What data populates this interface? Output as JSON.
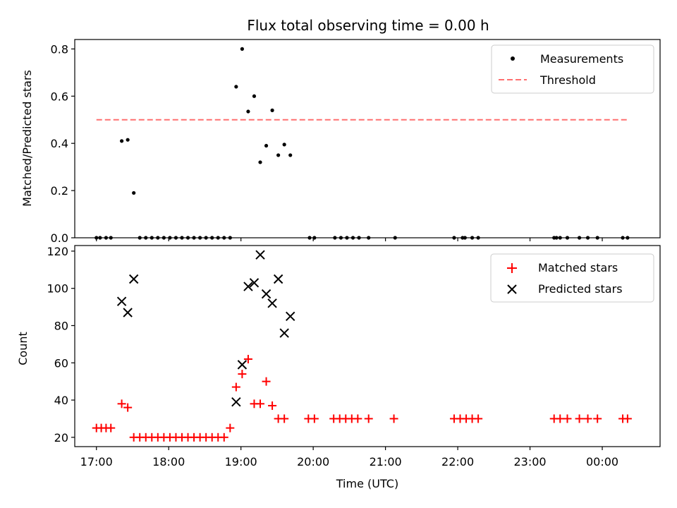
{
  "chart_data": [
    {
      "type": "scatter",
      "title": "Flux total observing time = 0.00 h",
      "ylabel": "Matched/Predicted stars",
      "xlim": [
        "16:42",
        "00:48"
      ],
      "ylim": [
        0,
        0.84
      ],
      "yticks": [
        "0.0",
        "0.2",
        "0.4",
        "0.6",
        "0.8"
      ],
      "legend_position": "top-right",
      "series": [
        {
          "name": "Measurements",
          "color": "#000000",
          "marker": "dot",
          "points": [
            {
              "x": "17:00",
              "y": 0.0
            },
            {
              "x": "17:03",
              "y": 0.0
            },
            {
              "x": "17:08",
              "y": 0.0
            },
            {
              "x": "17:12",
              "y": 0.0
            },
            {
              "x": "17:21",
              "y": 0.41
            },
            {
              "x": "17:26",
              "y": 0.415
            },
            {
              "x": "17:31",
              "y": 0.19
            },
            {
              "x": "17:36",
              "y": 0.0
            },
            {
              "x": "17:41",
              "y": 0.0
            },
            {
              "x": "17:46",
              "y": 0.0
            },
            {
              "x": "17:51",
              "y": 0.0
            },
            {
              "x": "17:56",
              "y": 0.0
            },
            {
              "x": "18:01",
              "y": 0.0
            },
            {
              "x": "18:06",
              "y": 0.0
            },
            {
              "x": "18:11",
              "y": 0.0
            },
            {
              "x": "18:16",
              "y": 0.0
            },
            {
              "x": "18:21",
              "y": 0.0
            },
            {
              "x": "18:26",
              "y": 0.0
            },
            {
              "x": "18:31",
              "y": 0.0
            },
            {
              "x": "18:36",
              "y": 0.0
            },
            {
              "x": "18:41",
              "y": 0.0
            },
            {
              "x": "18:46",
              "y": 0.0
            },
            {
              "x": "18:51",
              "y": 0.0
            },
            {
              "x": "18:56",
              "y": 0.64
            },
            {
              "x": "19:01",
              "y": 0.8
            },
            {
              "x": "19:06",
              "y": 0.535
            },
            {
              "x": "19:11",
              "y": 0.6
            },
            {
              "x": "19:16",
              "y": 0.32
            },
            {
              "x": "19:21",
              "y": 0.39
            },
            {
              "x": "19:26",
              "y": 0.54
            },
            {
              "x": "19:31",
              "y": 0.35
            },
            {
              "x": "19:36",
              "y": 0.395
            },
            {
              "x": "19:41",
              "y": 0.35
            },
            {
              "x": "19:57",
              "y": 0.0
            },
            {
              "x": "20:01",
              "y": 0.0
            },
            {
              "x": "20:18",
              "y": 0.0
            },
            {
              "x": "20:23",
              "y": 0.0
            },
            {
              "x": "20:28",
              "y": 0.0
            },
            {
              "x": "20:33",
              "y": 0.0
            },
            {
              "x": "20:38",
              "y": 0.0
            },
            {
              "x": "20:46",
              "y": 0.0
            },
            {
              "x": "21:08",
              "y": 0.0
            },
            {
              "x": "21:57",
              "y": 0.0
            },
            {
              "x": "22:04",
              "y": 0.0
            },
            {
              "x": "22:06",
              "y": 0.0
            },
            {
              "x": "22:12",
              "y": 0.0
            },
            {
              "x": "22:17",
              "y": 0.0
            },
            {
              "x": "23:20",
              "y": 0.0
            },
            {
              "x": "23:22",
              "y": 0.0
            },
            {
              "x": "23:25",
              "y": 0.0
            },
            {
              "x": "23:31",
              "y": 0.0
            },
            {
              "x": "23:41",
              "y": 0.0
            },
            {
              "x": "23:48",
              "y": 0.0
            },
            {
              "x": "23:56",
              "y": 0.0
            },
            {
              "x": "00:17",
              "y": 0.0
            },
            {
              "x": "00:21",
              "y": 0.0
            }
          ]
        },
        {
          "name": "Threshold",
          "color": "#ff7070",
          "style": "dashed",
          "points": [
            {
              "x": "17:00",
              "y": 0.5
            },
            {
              "x": "00:22",
              "y": 0.5
            }
          ]
        }
      ]
    },
    {
      "type": "scatter",
      "xlabel": "Time (UTC)",
      "ylabel": "Count",
      "xlim": [
        "16:42",
        "00:48"
      ],
      "ylim": [
        15,
        123
      ],
      "xticks": [
        "17:00",
        "18:00",
        "19:00",
        "20:00",
        "21:00",
        "22:00",
        "23:00",
        "00:00"
      ],
      "yticks": [
        "20",
        "40",
        "60",
        "80",
        "100",
        "120"
      ],
      "legend_position": "top-right",
      "series": [
        {
          "name": "Matched stars",
          "color": "#ff0000",
          "marker": "plus",
          "points": [
            {
              "x": "17:00",
              "y": 25
            },
            {
              "x": "17:04",
              "y": 25
            },
            {
              "x": "17:08",
              "y": 25
            },
            {
              "x": "17:12",
              "y": 25
            },
            {
              "x": "17:21",
              "y": 38
            },
            {
              "x": "17:26",
              "y": 36
            },
            {
              "x": "17:31",
              "y": 20
            },
            {
              "x": "17:36",
              "y": 20
            },
            {
              "x": "17:41",
              "y": 20
            },
            {
              "x": "17:46",
              "y": 20
            },
            {
              "x": "17:51",
              "y": 20
            },
            {
              "x": "17:56",
              "y": 20
            },
            {
              "x": "18:01",
              "y": 20
            },
            {
              "x": "18:06",
              "y": 20
            },
            {
              "x": "18:11",
              "y": 20
            },
            {
              "x": "18:16",
              "y": 20
            },
            {
              "x": "18:21",
              "y": 20
            },
            {
              "x": "18:26",
              "y": 20
            },
            {
              "x": "18:31",
              "y": 20
            },
            {
              "x": "18:36",
              "y": 20
            },
            {
              "x": "18:41",
              "y": 20
            },
            {
              "x": "18:46",
              "y": 20
            },
            {
              "x": "18:51",
              "y": 25
            },
            {
              "x": "18:56",
              "y": 47
            },
            {
              "x": "19:01",
              "y": 54
            },
            {
              "x": "19:06",
              "y": 62
            },
            {
              "x": "19:11",
              "y": 38
            },
            {
              "x": "19:16",
              "y": 38
            },
            {
              "x": "19:21",
              "y": 50
            },
            {
              "x": "19:26",
              "y": 37
            },
            {
              "x": "19:31",
              "y": 30
            },
            {
              "x": "19:36",
              "y": 30
            },
            {
              "x": "19:56",
              "y": 30
            },
            {
              "x": "20:01",
              "y": 30
            },
            {
              "x": "20:17",
              "y": 30
            },
            {
              "x": "20:22",
              "y": 30
            },
            {
              "x": "20:27",
              "y": 30
            },
            {
              "x": "20:32",
              "y": 30
            },
            {
              "x": "20:37",
              "y": 30
            },
            {
              "x": "20:46",
              "y": 30
            },
            {
              "x": "21:07",
              "y": 30
            },
            {
              "x": "21:57",
              "y": 30
            },
            {
              "x": "22:02",
              "y": 30
            },
            {
              "x": "22:07",
              "y": 30
            },
            {
              "x": "22:12",
              "y": 30
            },
            {
              "x": "22:17",
              "y": 30
            },
            {
              "x": "23:20",
              "y": 30
            },
            {
              "x": "23:25",
              "y": 30
            },
            {
              "x": "23:31",
              "y": 30
            },
            {
              "x": "23:41",
              "y": 30
            },
            {
              "x": "23:48",
              "y": 30
            },
            {
              "x": "23:56",
              "y": 30
            },
            {
              "x": "00:17",
              "y": 30
            },
            {
              "x": "00:21",
              "y": 30
            }
          ]
        },
        {
          "name": "Predicted stars",
          "color": "#000000",
          "marker": "x",
          "points": [
            {
              "x": "17:21",
              "y": 93
            },
            {
              "x": "17:26",
              "y": 87
            },
            {
              "x": "17:31",
              "y": 105
            },
            {
              "x": "18:56",
              "y": 39
            },
            {
              "x": "19:01",
              "y": 59
            },
            {
              "x": "19:06",
              "y": 101
            },
            {
              "x": "19:11",
              "y": 103
            },
            {
              "x": "19:16",
              "y": 118
            },
            {
              "x": "19:21",
              "y": 97
            },
            {
              "x": "19:26",
              "y": 92
            },
            {
              "x": "19:31",
              "y": 105
            },
            {
              "x": "19:36",
              "y": 76
            },
            {
              "x": "19:41",
              "y": 85
            }
          ]
        }
      ]
    }
  ]
}
